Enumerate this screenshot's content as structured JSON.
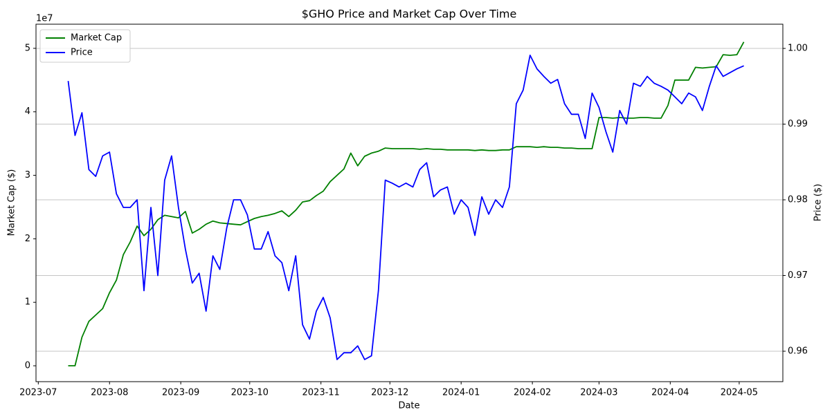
{
  "chart_data": {
    "type": "line",
    "title": "$GHO Price and Market Cap Over Time",
    "x_label": "Date",
    "y_label": "Market Cap ($)",
    "y2_label": "Price ($)",
    "y_offset_label": "1e7",
    "legend": "upper left",
    "grid": true,
    "x": [
      "2023-07-14",
      "2023-07-17",
      "2023-07-20",
      "2023-07-23",
      "2023-07-26",
      "2023-07-29",
      "2023-08-01",
      "2023-08-04",
      "2023-08-07",
      "2023-08-10",
      "2023-08-13",
      "2023-08-16",
      "2023-08-19",
      "2023-08-22",
      "2023-08-25",
      "2023-08-28",
      "2023-08-31",
      "2023-09-03",
      "2023-09-06",
      "2023-09-09",
      "2023-09-12",
      "2023-09-15",
      "2023-09-18",
      "2023-09-21",
      "2023-09-24",
      "2023-09-27",
      "2023-09-30",
      "2023-10-03",
      "2023-10-06",
      "2023-10-09",
      "2023-10-12",
      "2023-10-15",
      "2023-10-18",
      "2023-10-21",
      "2023-10-24",
      "2023-10-27",
      "2023-10-30",
      "2023-11-02",
      "2023-11-05",
      "2023-11-08",
      "2023-11-11",
      "2023-11-14",
      "2023-11-17",
      "2023-11-20",
      "2023-11-23",
      "2023-11-26",
      "2023-11-29",
      "2023-12-02",
      "2023-12-05",
      "2023-12-08",
      "2023-12-11",
      "2023-12-14",
      "2023-12-17",
      "2023-12-20",
      "2023-12-23",
      "2023-12-26",
      "2023-12-29",
      "2024-01-01",
      "2024-01-04",
      "2024-01-07",
      "2024-01-10",
      "2024-01-13",
      "2024-01-16",
      "2024-01-19",
      "2024-01-22",
      "2024-01-25",
      "2024-01-28",
      "2024-01-31",
      "2024-02-03",
      "2024-02-06",
      "2024-02-09",
      "2024-02-12",
      "2024-02-15",
      "2024-02-18",
      "2024-02-21",
      "2024-02-24",
      "2024-02-27",
      "2024-03-01",
      "2024-03-04",
      "2024-03-07",
      "2024-03-10",
      "2024-03-13",
      "2024-03-16",
      "2024-03-19",
      "2024-03-22",
      "2024-03-25",
      "2024-03-28",
      "2024-03-31",
      "2024-04-03",
      "2024-04-06",
      "2024-04-09",
      "2024-04-12",
      "2024-04-15",
      "2024-04-18",
      "2024-04-21",
      "2024-04-24",
      "2024-04-27",
      "2024-04-30",
      "2024-05-03"
    ],
    "series": [
      {
        "name": "Market Cap",
        "color": "#008000",
        "axis": "y",
        "values": [
          0,
          0,
          4500000,
          7000000,
          8000000,
          9000000,
          11500000,
          13500000,
          17500000,
          19500000,
          22000000,
          20500000,
          21500000,
          23000000,
          23700000,
          23500000,
          23300000,
          24300000,
          20900000,
          21500000,
          22300000,
          22800000,
          22500000,
          22400000,
          22300000,
          22200000,
          22700000,
          23200000,
          23500000,
          23700000,
          24000000,
          24400000,
          23500000,
          24500000,
          25800000,
          26000000,
          26800000,
          27500000,
          29000000,
          30000000,
          31000000,
          33500000,
          31500000,
          33000000,
          33500000,
          33800000,
          34300000,
          34200000,
          34200000,
          34200000,
          34200000,
          34100000,
          34200000,
          34100000,
          34100000,
          34000000,
          34000000,
          34000000,
          34000000,
          33900000,
          34000000,
          33900000,
          33900000,
          34000000,
          34000000,
          34500000,
          34500000,
          34500000,
          34400000,
          34500000,
          34400000,
          34400000,
          34300000,
          34300000,
          34200000,
          34200000,
          34200000,
          39100000,
          39100000,
          39000000,
          39100000,
          39000000,
          39000000,
          39100000,
          39100000,
          39000000,
          39000000,
          41000000,
          45000000,
          45000000,
          45000000,
          47000000,
          46900000,
          47000000,
          47100000,
          49000000,
          48900000,
          49000000,
          51000000
        ]
      },
      {
        "name": "Price",
        "color": "#0000ff",
        "axis": "y2",
        "values": [
          0.9957,
          0.9885,
          0.9915,
          0.984,
          0.9831,
          0.9858,
          0.9863,
          0.9808,
          0.979,
          0.979,
          0.98,
          0.968,
          0.979,
          0.97,
          0.9826,
          0.9858,
          0.979,
          0.9735,
          0.969,
          0.9703,
          0.9653,
          0.9726,
          0.9708,
          0.9763,
          0.98,
          0.98,
          0.978,
          0.9735,
          0.9735,
          0.9758,
          0.9726,
          0.9717,
          0.968,
          0.9726,
          0.9635,
          0.9616,
          0.9653,
          0.9671,
          0.9644,
          0.9589,
          0.9598,
          0.9598,
          0.9607,
          0.9589,
          0.9594,
          0.968,
          0.9826,
          0.9822,
          0.9817,
          0.9822,
          0.9817,
          0.984,
          0.9849,
          0.9804,
          0.9813,
          0.9817,
          0.9781,
          0.98,
          0.979,
          0.9753,
          0.9804,
          0.9781,
          0.98,
          0.979,
          0.9817,
          0.9927,
          0.9945,
          0.9991,
          0.9973,
          0.9963,
          0.9954,
          0.9959,
          0.9927,
          0.9913,
          0.9913,
          0.9881,
          0.9941,
          0.9922,
          0.989,
          0.9863,
          0.9918,
          0.99,
          0.9954,
          0.995,
          0.9963,
          0.9954,
          0.995,
          0.9945,
          0.9936,
          0.9927,
          0.9941,
          0.9936,
          0.9918,
          0.995,
          0.9977,
          0.9963,
          0.9968,
          0.9973,
          0.9977
        ]
      }
    ],
    "xlim": [
      "2023-06-30",
      "2024-05-20"
    ],
    "xticks": [
      "2023-07",
      "2023-08",
      "2023-09",
      "2023-10",
      "2023-11",
      "2023-12",
      "2024-01",
      "2024-02",
      "2024-03",
      "2024-04",
      "2024-05"
    ],
    "ylim": [
      -2500000,
      53800000
    ],
    "yticks": [
      0,
      {
        "value": 10000000,
        "label": "1"
      },
      {
        "value": 20000000,
        "label": "2"
      },
      {
        "value": 30000000,
        "label": "3"
      },
      {
        "value": 40000000,
        "label": "4"
      },
      {
        "value": 50000000,
        "label": "5"
      }
    ],
    "y2lim": [
      0.95598,
      1.0032
    ],
    "y2ticks": [
      0.96,
      0.97,
      0.98,
      0.99,
      {
        "value": 1,
        "label": "1.00"
      }
    ]
  }
}
